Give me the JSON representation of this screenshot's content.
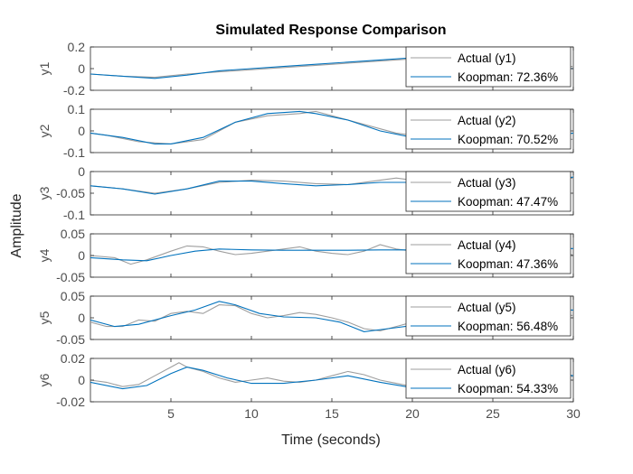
{
  "chart_data": {
    "type": "line",
    "title": "Simulated Response Comparison",
    "xlabel": "Time (seconds)",
    "ylabel": "Amplitude",
    "xlim": [
      0,
      30
    ],
    "xticks": [
      5,
      10,
      15,
      20,
      25,
      30
    ],
    "grid": false,
    "colors": {
      "actual": "#9e9e9e",
      "model": "#0072bd"
    },
    "panels": [
      {
        "name": "y1",
        "ylim": [
          -0.2,
          0.2
        ],
        "yticks": [
          0.2,
          0,
          -0.2
        ],
        "legend": [
          "Actual (y1)",
          "Koopman: 72.36%"
        ],
        "actual": [
          [
            0,
            -0.05
          ],
          [
            2,
            -0.07
          ],
          [
            4,
            -0.08
          ],
          [
            6,
            -0.05
          ],
          [
            8,
            -0.03
          ],
          [
            10,
            -0.01
          ],
          [
            12,
            0.01
          ],
          [
            14,
            0.03
          ],
          [
            16,
            0.05
          ],
          [
            18,
            0.07
          ],
          [
            20,
            0.09
          ],
          [
            22,
            0.09
          ],
          [
            24,
            0.07
          ],
          [
            26,
            0.04
          ],
          [
            28,
            0.02
          ],
          [
            30,
            0.02
          ]
        ],
        "model": [
          [
            0,
            -0.05
          ],
          [
            2,
            -0.07
          ],
          [
            4,
            -0.09
          ],
          [
            6,
            -0.06
          ],
          [
            8,
            -0.02
          ],
          [
            10,
            0.0
          ],
          [
            12,
            0.02
          ],
          [
            14,
            0.04
          ],
          [
            16,
            0.06
          ],
          [
            18,
            0.08
          ],
          [
            20,
            0.1
          ],
          [
            22,
            0.09
          ],
          [
            24,
            0.06
          ],
          [
            26,
            0.03
          ],
          [
            28,
            0.01
          ],
          [
            30,
            0.0
          ]
        ]
      },
      {
        "name": "y2",
        "ylim": [
          -0.1,
          0.1
        ],
        "yticks": [
          0.1,
          0,
          -0.1
        ],
        "legend": [
          "Actual (y2)",
          "Koopman: 70.52%"
        ],
        "actual": [
          [
            0,
            -0.01
          ],
          [
            1,
            -0.02
          ],
          [
            3,
            -0.05
          ],
          [
            5,
            -0.06
          ],
          [
            7,
            -0.04
          ],
          [
            9,
            0.04
          ],
          [
            11,
            0.07
          ],
          [
            13,
            0.08
          ],
          [
            14,
            0.09
          ],
          [
            15,
            0.07
          ],
          [
            17,
            0.03
          ],
          [
            19,
            -0.01
          ],
          [
            21,
            -0.03
          ],
          [
            23,
            -0.05
          ],
          [
            25,
            -0.06
          ],
          [
            27,
            -0.05
          ],
          [
            29,
            -0.03
          ],
          [
            30,
            -0.04
          ]
        ],
        "model": [
          [
            0,
            -0.01
          ],
          [
            2,
            -0.03
          ],
          [
            4,
            -0.06
          ],
          [
            5,
            -0.06
          ],
          [
            7,
            -0.03
          ],
          [
            9,
            0.04
          ],
          [
            11,
            0.08
          ],
          [
            13,
            0.09
          ],
          [
            14,
            0.08
          ],
          [
            16,
            0.05
          ],
          [
            18,
            0.0
          ],
          [
            20,
            -0.03
          ],
          [
            22,
            -0.05
          ],
          [
            24,
            -0.06
          ],
          [
            26,
            -0.05
          ],
          [
            28,
            -0.03
          ],
          [
            30,
            -0.01
          ]
        ]
      },
      {
        "name": "y3",
        "ylim": [
          -0.1,
          0
        ],
        "yticks": [
          0,
          -0.05,
          -0.1
        ],
        "legend": [
          "Actual (y3)",
          "Koopman: 47.47%"
        ],
        "actual": [
          [
            0,
            -0.033
          ],
          [
            2,
            -0.04
          ],
          [
            4,
            -0.05
          ],
          [
            6,
            -0.04
          ],
          [
            8,
            -0.025
          ],
          [
            10,
            -0.02
          ],
          [
            12,
            -0.022
          ],
          [
            14,
            -0.028
          ],
          [
            16,
            -0.03
          ],
          [
            18,
            -0.02
          ],
          [
            19,
            -0.015
          ],
          [
            20,
            -0.02
          ],
          [
            22,
            -0.03
          ],
          [
            24,
            -0.035
          ],
          [
            26,
            -0.03
          ],
          [
            28,
            -0.02
          ],
          [
            30,
            -0.015
          ]
        ],
        "model": [
          [
            0,
            -0.033
          ],
          [
            2,
            -0.04
          ],
          [
            4,
            -0.052
          ],
          [
            6,
            -0.04
          ],
          [
            8,
            -0.022
          ],
          [
            10,
            -0.022
          ],
          [
            12,
            -0.028
          ],
          [
            14,
            -0.033
          ],
          [
            16,
            -0.03
          ],
          [
            18,
            -0.025
          ],
          [
            20,
            -0.025
          ],
          [
            22,
            -0.028
          ],
          [
            24,
            -0.03
          ],
          [
            26,
            -0.03
          ],
          [
            28,
            -0.02
          ],
          [
            30,
            -0.013
          ]
        ]
      },
      {
        "name": "y4",
        "ylim": [
          -0.05,
          0.05
        ],
        "yticks": [
          0.05,
          0,
          -0.05
        ],
        "legend": [
          "Actual (y4)",
          "Koopman: 47.36%"
        ],
        "actual": [
          [
            0,
            0.0
          ],
          [
            1.5,
            -0.005
          ],
          [
            2.5,
            -0.02
          ],
          [
            3.5,
            -0.01
          ],
          [
            5,
            0.01
          ],
          [
            6,
            0.022
          ],
          [
            7,
            0.02
          ],
          [
            8,
            0.01
          ],
          [
            9,
            0.002
          ],
          [
            10,
            0.005
          ],
          [
            11,
            0.01
          ],
          [
            12,
            0.015
          ],
          [
            13,
            0.02
          ],
          [
            14,
            0.01
          ],
          [
            15,
            0.005
          ],
          [
            16,
            0.002
          ],
          [
            17,
            0.01
          ],
          [
            18,
            0.025
          ],
          [
            19,
            0.015
          ],
          [
            20,
            0.01
          ],
          [
            21,
            0.005
          ],
          [
            22,
            0.0
          ],
          [
            23,
            0.01
          ],
          [
            24,
            0.02
          ],
          [
            25,
            0.015
          ],
          [
            26,
            0.005
          ],
          [
            27,
            0.01
          ],
          [
            28,
            0.02
          ],
          [
            29,
            0.015
          ],
          [
            30,
            0.0
          ]
        ],
        "model": [
          [
            0,
            -0.005
          ],
          [
            2,
            -0.01
          ],
          [
            3.5,
            -0.012
          ],
          [
            5,
            0.0
          ],
          [
            6.5,
            0.01
          ],
          [
            8,
            0.015
          ],
          [
            10,
            0.013
          ],
          [
            12,
            0.012
          ],
          [
            14,
            0.012
          ],
          [
            16,
            0.012
          ],
          [
            18,
            0.013
          ],
          [
            20,
            0.013
          ],
          [
            22,
            0.013
          ],
          [
            24,
            0.014
          ],
          [
            26,
            0.015
          ],
          [
            28,
            0.016
          ],
          [
            30,
            0.016
          ]
        ]
      },
      {
        "name": "y5",
        "ylim": [
          -0.05,
          0.05
        ],
        "yticks": [
          0.05,
          0,
          -0.05
        ],
        "legend": [
          "Actual (y5)",
          "Koopman: 56.48%"
        ],
        "actual": [
          [
            0,
            -0.01
          ],
          [
            1,
            -0.02
          ],
          [
            2,
            -0.02
          ],
          [
            3,
            -0.005
          ],
          [
            4,
            -0.008
          ],
          [
            5,
            0.01
          ],
          [
            6,
            0.015
          ],
          [
            7,
            0.01
          ],
          [
            8,
            0.03
          ],
          [
            9,
            0.028
          ],
          [
            10,
            0.01
          ],
          [
            11,
            0.0
          ],
          [
            12,
            0.005
          ],
          [
            13,
            0.012
          ],
          [
            14,
            0.008
          ],
          [
            15,
            0.0
          ],
          [
            16,
            -0.01
          ],
          [
            17,
            -0.025
          ],
          [
            18,
            -0.03
          ],
          [
            19,
            -0.02
          ],
          [
            20,
            -0.01
          ],
          [
            22,
            -0.015
          ],
          [
            24,
            -0.01
          ],
          [
            26,
            -0.005
          ],
          [
            27,
            0.01
          ],
          [
            28,
            0.02
          ],
          [
            29,
            0.01
          ],
          [
            30,
            0.005
          ]
        ],
        "model": [
          [
            0,
            -0.005
          ],
          [
            1.5,
            -0.02
          ],
          [
            3,
            -0.015
          ],
          [
            5,
            0.005
          ],
          [
            6.5,
            0.018
          ],
          [
            8,
            0.038
          ],
          [
            9,
            0.03
          ],
          [
            10.5,
            0.01
          ],
          [
            12,
            0.002
          ],
          [
            14,
            0.0
          ],
          [
            15.5,
            -0.01
          ],
          [
            17,
            -0.032
          ],
          [
            18.5,
            -0.025
          ],
          [
            20,
            -0.018
          ],
          [
            22,
            -0.01
          ],
          [
            24,
            0.0
          ],
          [
            26,
            0.008
          ],
          [
            28,
            0.02
          ],
          [
            30,
            0.018
          ]
        ]
      },
      {
        "name": "y6",
        "ylim": [
          -0.02,
          0.02
        ],
        "yticks": [
          0.02,
          0,
          -0.02
        ],
        "legend": [
          "Actual (y6)",
          "Koopman: 54.33%"
        ],
        "actual": [
          [
            0,
            0.0
          ],
          [
            1,
            -0.002
          ],
          [
            2,
            -0.006
          ],
          [
            3,
            -0.004
          ],
          [
            4,
            0.004
          ],
          [
            5,
            0.012
          ],
          [
            5.5,
            0.016
          ],
          [
            6,
            0.012
          ],
          [
            7,
            0.008
          ],
          [
            8,
            0.002
          ],
          [
            9,
            -0.002
          ],
          [
            10,
            0.0
          ],
          [
            11,
            0.002
          ],
          [
            12,
            -0.001
          ],
          [
            13,
            -0.002
          ],
          [
            14,
            0.0
          ],
          [
            15,
            0.004
          ],
          [
            16,
            0.008
          ],
          [
            17,
            0.005
          ],
          [
            18,
            0.0
          ],
          [
            19,
            -0.003
          ],
          [
            20,
            -0.006
          ],
          [
            21,
            -0.004
          ],
          [
            22,
            0.0
          ],
          [
            23,
            0.004
          ],
          [
            24,
            0.006
          ],
          [
            25,
            0.003
          ],
          [
            26,
            0.008
          ],
          [
            27,
            0.006
          ],
          [
            28,
            0.005
          ],
          [
            29,
            0.008
          ],
          [
            30,
            0.003
          ]
        ],
        "model": [
          [
            0,
            -0.002
          ],
          [
            2,
            -0.008
          ],
          [
            3.5,
            -0.005
          ],
          [
            5,
            0.006
          ],
          [
            6,
            0.012
          ],
          [
            7,
            0.009
          ],
          [
            8.5,
            0.002
          ],
          [
            10,
            -0.003
          ],
          [
            12,
            -0.003
          ],
          [
            14,
            0.0
          ],
          [
            16,
            0.004
          ],
          [
            18,
            -0.002
          ],
          [
            20,
            -0.007
          ],
          [
            22,
            -0.004
          ],
          [
            24,
            0.001
          ],
          [
            26,
            0.006
          ],
          [
            28,
            0.009
          ],
          [
            30,
            0.004
          ]
        ]
      }
    ]
  }
}
